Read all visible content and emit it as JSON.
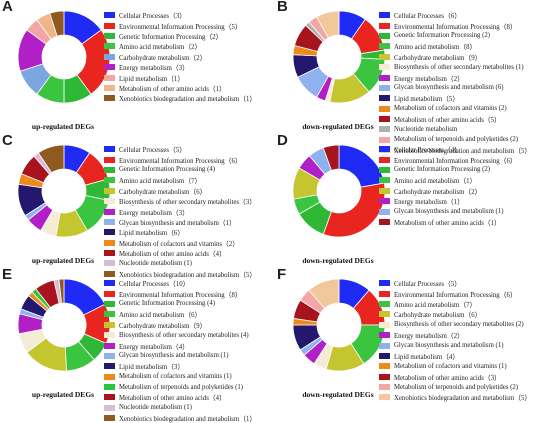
{
  "colors": {
    "Cellular Processes": "#1f2bf5",
    "Environmental Information Processing": "#e8251f",
    "Genetic Information Processing": "#2fb836",
    "Amino acid metabolism": "#3ac43f",
    "Carbohydrate metabolism": "#c5c530",
    "Biosynthesis of other secondary metabolites": "#f5ecd5",
    "Energy metabolism": "#b11fc7",
    "Glycan biosynthesis and metabolism": "#8fb2ee",
    "Lipid metabolism": "#23186e",
    "Metabolism of cofactors and vitamins": "#ee8a1c",
    "Metabolism of other amino acids": "#a8141e",
    "Metabolism of terpenoids and polyketides": "#2bc63c",
    "Nucleotide metabolism": "#d8bcd6",
    "Xenobiotics biodegradation and metabolism": "#8e5a1f",
    "Carbohydrate metabolism (A)": "#7ca6e0",
    "Lipid metabolism (A)": "#f4a6a4",
    "Metabolism of other amino acids (A)": "#f2b48a",
    "Xenobiotics biodegradation and metabolism (A)": "#8e5a1f",
    "Nucleotide metabolism (B)": "#b0b0b0",
    "Metabolism of terpenoids and polyketides (B)": "#f4a6a4",
    "Xenobiotics biodegradation and metabolism (B)": "#f2c89a"
  },
  "chart_data": [
    {
      "panel": "A",
      "type": "pie",
      "caption": "up-regulated DEGs",
      "legend_labels": [
        "Cellular Processes（3）",
        "Environmental Information Processing（5）",
        "Genetic Information Processing（2）",
        "Amino acid metabolism（2）",
        "Carbohydrate metabolism（2）",
        "Energy metabolism（3）",
        "Lipid metabolism（1）",
        "Metabolism of other amino acids（1）",
        "Xenobiotics biodegradation and metabolism（1）"
      ],
      "categories": [
        "Cellular Processes",
        "Environmental Information Processing",
        "Genetic Information Processing",
        "Amino acid metabolism",
        "Carbohydrate metabolism",
        "Energy metabolism",
        "Lipid metabolism",
        "Metabolism of other amino acids",
        "Xenobiotics biodegradation and metabolism"
      ],
      "values": [
        3,
        5,
        2,
        2,
        2,
        3,
        1,
        1,
        1
      ],
      "color_keys": [
        "Cellular Processes",
        "Environmental Information Processing",
        "Genetic Information Processing",
        "Amino acid metabolism",
        "Carbohydrate metabolism (A)",
        "Energy metabolism",
        "Lipid metabolism (A)",
        "Metabolism of other amino acids (A)",
        "Xenobiotics biodegradation and metabolism (A)"
      ]
    },
    {
      "panel": "B",
      "type": "pie",
      "caption": "down-regulated DEGs",
      "legend_labels": [
        "Cellular Processes（6）",
        "Environmental Information Processing（8）",
        "Genetic Information Processing (2)",
        "Amino acid metabolism（8）",
        "Carbohydrate metabolism（9）",
        "Biosynthesis of other secondary metabolites (1)",
        "Energy metabolism（2）",
        "Glycan biosynthesis and metabolism (6)",
        "Lipid metabolism（5）",
        "Metabolism of cofactors and vitamins (2)",
        "Metabolism of other amino acids（5）",
        "Nucleotide metabolism",
        "Metabolism of terpenoids and polyketides (2)",
        "Xenobiotics biodegradation and metabolism（5）"
      ],
      "categories": [
        "Cellular Processes",
        "Environmental Information Processing",
        "Genetic Information Processing",
        "Amino acid metabolism",
        "Carbohydrate metabolism",
        "Biosynthesis of other secondary metabolites",
        "Energy metabolism",
        "Glycan biosynthesis and metabolism",
        "Lipid metabolism",
        "Metabolism of cofactors and vitamins",
        "Metabolism of other amino acids",
        "Nucleotide metabolism",
        "Metabolism of terpenoids and polyketides",
        "Xenobiotics biodegradation and metabolism"
      ],
      "values": [
        6,
        8,
        2,
        8,
        9,
        1,
        2,
        6,
        5,
        2,
        5,
        1,
        2,
        5
      ],
      "color_keys": [
        "Cellular Processes",
        "Environmental Information Processing",
        "Genetic Information Processing",
        "Amino acid metabolism",
        "Carbohydrate metabolism",
        "Biosynthesis of other secondary metabolites",
        "Energy metabolism",
        "Glycan biosynthesis and metabolism",
        "Lipid metabolism",
        "Metabolism of cofactors and vitamins",
        "Metabolism of other amino acids",
        "Nucleotide metabolism (B)",
        "Metabolism of terpenoids and polyketides (B)",
        "Xenobiotics biodegradation and metabolism (B)"
      ]
    },
    {
      "panel": "C",
      "type": "pie",
      "caption": "up-regulated DEGs",
      "legend_labels": [
        "Cellular Processes（5）",
        "Environmental Information Processing（6）",
        "Genetic Information Processing (4)",
        "Amino acid metabolism（7）",
        "Carbohydrate metabolism（6）",
        "Biosynthesis of other secondary metabolites（3）",
        "Energy metabolism（3）",
        "Glycan biosynthesis and metabolism（1）",
        "Lipid metabolism（6）",
        "Metabolism of cofactors and vitamins（2）",
        "Metabolism of other amino acids（4）",
        "Nucleotide metabolism (1)",
        "Xenobiotics biodegradation and metabolism（5）"
      ],
      "categories": [
        "Cellular Processes",
        "Environmental Information Processing",
        "Genetic Information Processing",
        "Amino acid metabolism",
        "Carbohydrate metabolism",
        "Biosynthesis of other secondary metabolites",
        "Energy metabolism",
        "Glycan biosynthesis and metabolism",
        "Lipid metabolism",
        "Metabolism of cofactors and vitamins",
        "Metabolism of other amino acids",
        "Nucleotide metabolism",
        "Xenobiotics biodegradation and metabolism"
      ],
      "values": [
        5,
        6,
        4,
        7,
        6,
        3,
        3,
        1,
        6,
        2,
        4,
        1,
        5
      ],
      "color_keys": [
        "Cellular Processes",
        "Environmental Information Processing",
        "Genetic Information Processing",
        "Amino acid metabolism",
        "Carbohydrate metabolism",
        "Biosynthesis of other secondary metabolites",
        "Energy metabolism",
        "Glycan biosynthesis and metabolism",
        "Lipid metabolism",
        "Metabolism of cofactors and vitamins",
        "Metabolism of other amino acids",
        "Nucleotide metabolism",
        "Xenobiotics biodegradation and metabolism"
      ]
    },
    {
      "panel": "D",
      "type": "pie",
      "caption": "down-regulated DEGs",
      "legend_labels": [
        "Cellular Processes（4）",
        "Environmental Information Processing（6）",
        "Genetic Information Processing (2)",
        "Amino acid metabolism（1）",
        "Carbohydrate metabolism（2）",
        "Energy metabolism（1）",
        "Glycan biosynthesis and metabolism (1)",
        "Metabolism of other amino acids（1）"
      ],
      "categories": [
        "Cellular Processes",
        "Environmental Information Processing",
        "Genetic Information Processing",
        "Amino acid metabolism",
        "Carbohydrate metabolism",
        "Energy metabolism",
        "Glycan biosynthesis and metabolism",
        "Metabolism of other amino acids"
      ],
      "values": [
        4,
        6,
        2,
        1,
        2,
        1,
        1,
        1
      ],
      "color_keys": [
        "Cellular Processes",
        "Environmental Information Processing",
        "Genetic Information Processing",
        "Amino acid metabolism",
        "Carbohydrate metabolism",
        "Energy metabolism",
        "Glycan biosynthesis and metabolism",
        "Metabolism of other amino acids"
      ]
    },
    {
      "panel": "E",
      "type": "pie",
      "caption": "up-regulated DEGs",
      "legend_labels": [
        "Cellular Processes（10）",
        "Environmental Information Processing（8）",
        "Genetic Information Processing (4)",
        "Amino acid metabolism（6）",
        "Carbohydrate metabolism（9）",
        "Biosynthesis of other secondary metabolites (4)",
        "Energy metabolism（4）",
        "Glycan biosynthesis and metabolism (1)",
        "Lipid metabolism（3）",
        "Metabolism of cofactors and vitamins (1)",
        "Metabolism of terpenoids and polyketides (1)",
        "Metabolism of other amino acids（4）",
        "Nucleotide metabolism (1)",
        "Xenobiotics biodegradation and metabolism（1）"
      ],
      "categories": [
        "Cellular Processes",
        "Environmental Information Processing",
        "Genetic Information Processing",
        "Amino acid metabolism",
        "Carbohydrate metabolism",
        "Biosynthesis of other secondary metabolites",
        "Energy metabolism",
        "Glycan biosynthesis and metabolism",
        "Lipid metabolism",
        "Metabolism of cofactors and vitamins",
        "Metabolism of terpenoids and polyketides",
        "Metabolism of other amino acids",
        "Nucleotide metabolism",
        "Xenobiotics biodegradation and metabolism"
      ],
      "values": [
        10,
        8,
        4,
        6,
        9,
        4,
        4,
        1,
        3,
        1,
        1,
        4,
        1,
        1
      ],
      "color_keys": [
        "Cellular Processes",
        "Environmental Information Processing",
        "Genetic Information Processing",
        "Amino acid metabolism",
        "Carbohydrate metabolism",
        "Biosynthesis of other secondary metabolites",
        "Energy metabolism",
        "Glycan biosynthesis and metabolism",
        "Lipid metabolism",
        "Metabolism of cofactors and vitamins",
        "Metabolism of terpenoids and polyketides",
        "Metabolism of other amino acids",
        "Nucleotide metabolism",
        "Xenobiotics biodegradation and metabolism"
      ]
    },
    {
      "panel": "F",
      "type": "pie",
      "caption": "down-regulated DEGs",
      "legend_labels": [
        "Cellular Processes（5）",
        "Environmental Information Processing（6）",
        "Amino acid metabolism（7）",
        "Carbohydrate metabolism（6）",
        "Biosynthesis of other secondary metabolites (2)",
        "Energy metabolism（2）",
        "Glycan biosynthesis and metabolism (1)",
        "Lipid metabolism（4）",
        "Metabolism of cofactors and vitamins (1)",
        "Metabolism of other amino acids（3）",
        "Metabolism of terpenoids and polyketides (2)",
        "Xenobiotics biodegradation and metabolism（5）"
      ],
      "categories": [
        "Cellular Processes",
        "Environmental Information Processing",
        "Amino acid metabolism",
        "Carbohydrate metabolism",
        "Biosynthesis of other secondary metabolites",
        "Energy metabolism",
        "Glycan biosynthesis and metabolism",
        "Lipid metabolism",
        "Metabolism of cofactors and vitamins",
        "Metabolism of other amino acids",
        "Metabolism of terpenoids and polyketides",
        "Xenobiotics biodegradation and metabolism"
      ],
      "values": [
        5,
        6,
        7,
        6,
        2,
        2,
        1,
        4,
        1,
        3,
        2,
        5
      ],
      "color_keys": [
        "Cellular Processes",
        "Environmental Information Processing",
        "Amino acid metabolism",
        "Carbohydrate metabolism",
        "Biosynthesis of other secondary metabolites",
        "Energy metabolism",
        "Glycan biosynthesis and metabolism",
        "Lipid metabolism",
        "Metabolism of cofactors and vitamins",
        "Metabolism of other amino acids",
        "Metabolism of terpenoids and polyketides (B)",
        "Xenobiotics biodegradation and metabolism (B)"
      ]
    }
  ]
}
